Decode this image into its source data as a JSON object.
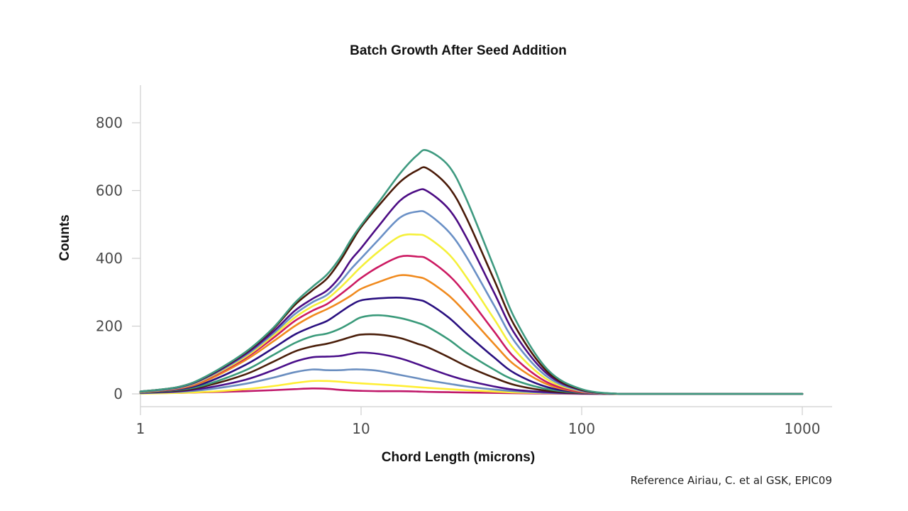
{
  "chart_data": {
    "type": "line",
    "title": "Batch Growth After Seed Addition",
    "xlabel": "Chord Length (microns)",
    "ylabel": "Counts",
    "x_scale": "log",
    "xlim": [
      1,
      1000
    ],
    "ylim": [
      0,
      900
    ],
    "x_ticks": [
      "1",
      "10",
      "100",
      "1000"
    ],
    "y_ticks": [
      "0",
      "200",
      "400",
      "600",
      "800"
    ],
    "grid": false,
    "legend": "none",
    "x": [
      1,
      1.5,
      2,
      3,
      4,
      5,
      6,
      7,
      8,
      9,
      10,
      12,
      15,
      18,
      20,
      25,
      30,
      40,
      50,
      70,
      100,
      150,
      200,
      500,
      1000
    ],
    "series": [
      {
        "color": "#c0186a",
        "values": [
          2,
          3,
          5,
          8,
          11,
          14,
          16,
          15,
          12,
          10,
          9,
          8,
          8,
          7,
          6,
          5,
          4,
          3,
          2,
          1,
          0,
          0,
          0,
          0,
          0
        ]
      },
      {
        "color": "#ffee33",
        "values": [
          1,
          3,
          6,
          14,
          23,
          32,
          38,
          38,
          36,
          33,
          31,
          28,
          24,
          20,
          18,
          14,
          11,
          7,
          4,
          2,
          1,
          0,
          0,
          0,
          0
        ]
      },
      {
        "color": "#6a8ec0",
        "values": [
          2,
          6,
          13,
          30,
          48,
          64,
          72,
          70,
          70,
          72,
          72,
          68,
          56,
          46,
          40,
          30,
          22,
          13,
          8,
          3,
          1,
          0,
          0,
          0,
          0
        ]
      },
      {
        "color": "#4a0f8a",
        "values": [
          3,
          8,
          18,
          42,
          70,
          95,
          108,
          110,
          112,
          118,
          122,
          118,
          105,
          88,
          77,
          55,
          40,
          22,
          12,
          5,
          1,
          0,
          0,
          0,
          0
        ]
      },
      {
        "color": "#4a1e0a",
        "values": [
          4,
          10,
          24,
          58,
          95,
          125,
          140,
          148,
          158,
          168,
          175,
          175,
          165,
          148,
          138,
          108,
          82,
          48,
          26,
          9,
          2,
          0,
          0,
          0,
          0
        ]
      },
      {
        "color": "#3a9a7a",
        "values": [
          4,
          12,
          28,
          70,
          115,
          150,
          170,
          178,
          192,
          210,
          226,
          232,
          224,
          210,
          198,
          160,
          122,
          72,
          40,
          14,
          3,
          0,
          0,
          0,
          0
        ]
      },
      {
        "color": "#2a1080",
        "values": [
          5,
          14,
          34,
          86,
          135,
          175,
          198,
          215,
          240,
          262,
          276,
          282,
          284,
          278,
          268,
          225,
          178,
          108,
          60,
          20,
          4,
          0,
          0,
          0,
          0
        ]
      },
      {
        "color": "#f08a1e",
        "values": [
          5,
          16,
          40,
          100,
          155,
          200,
          230,
          250,
          270,
          290,
          310,
          330,
          350,
          345,
          335,
          290,
          238,
          148,
          84,
          28,
          5,
          0,
          0,
          0,
          0
        ]
      },
      {
        "color": "#cc1a62",
        "values": [
          6,
          17,
          44,
          106,
          165,
          215,
          245,
          265,
          292,
          318,
          342,
          375,
          405,
          405,
          398,
          350,
          292,
          185,
          105,
          34,
          6,
          0,
          0,
          0,
          0
        ]
      },
      {
        "color": "#f5f03a",
        "values": [
          6,
          18,
          46,
          110,
          172,
          225,
          258,
          280,
          312,
          345,
          375,
          420,
          465,
          470,
          462,
          412,
          345,
          222,
          128,
          42,
          8,
          0,
          0,
          0,
          0
        ]
      },
      {
        "color": "#6a90c6",
        "values": [
          6,
          19,
          48,
          114,
          178,
          235,
          270,
          292,
          328,
          368,
          400,
          455,
          520,
          538,
          532,
          478,
          405,
          262,
          152,
          50,
          9,
          0,
          0,
          0,
          0
        ]
      },
      {
        "color": "#4c0c84",
        "values": [
          7,
          20,
          50,
          118,
          184,
          245,
          280,
          305,
          345,
          395,
          430,
          495,
          570,
          600,
          598,
          545,
          462,
          300,
          175,
          58,
          11,
          0,
          0,
          0,
          0
        ]
      },
      {
        "color": "#4a1a08",
        "values": [
          7,
          21,
          52,
          122,
          192,
          262,
          305,
          340,
          390,
          445,
          492,
          555,
          625,
          660,
          665,
          610,
          520,
          338,
          198,
          65,
          12,
          0,
          0,
          0,
          0
        ]
      },
      {
        "color": "#3f9a80",
        "values": [
          7,
          21,
          53,
          124,
          195,
          268,
          315,
          352,
          400,
          455,
          498,
          565,
          650,
          705,
          718,
          672,
          575,
          375,
          220,
          72,
          14,
          0,
          0,
          0,
          0
        ]
      }
    ]
  },
  "footer": {
    "reference": "Reference  Airiau, C. et al GSK, EPIC09"
  }
}
